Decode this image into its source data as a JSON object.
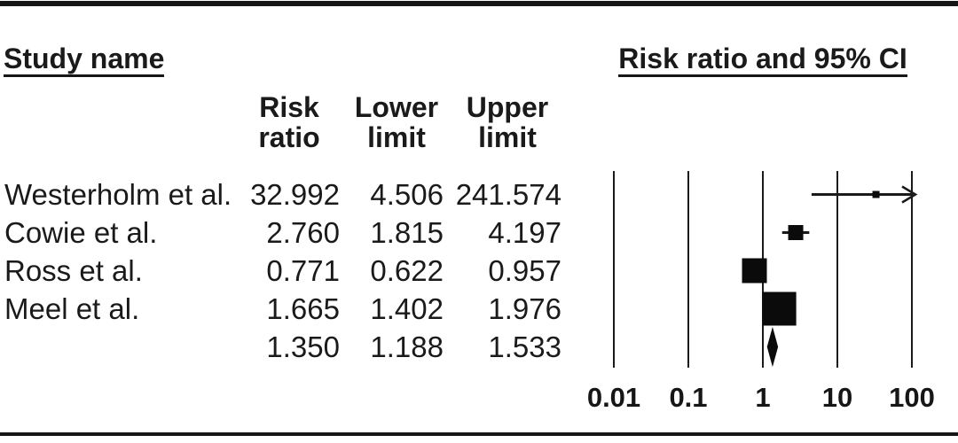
{
  "figure": {
    "headers": {
      "study_column": "Study name",
      "plot_column": "Risk ratio and 95% CI"
    },
    "table": {
      "columns": [
        {
          "line1": "Risk",
          "line2": "ratio"
        },
        {
          "line1": "Lower",
          "line2": "limit"
        },
        {
          "line1": "Upper",
          "line2": "limit"
        }
      ],
      "rows": [
        {
          "study": "Westerholm et al.",
          "risk_ratio": "32.992",
          "lower": "4.506",
          "upper": "241.574"
        },
        {
          "study": "Cowie et al.",
          "risk_ratio": "2.760",
          "lower": "1.815",
          "upper": "4.197"
        },
        {
          "study": "Ross et al.",
          "risk_ratio": "0.771",
          "lower": "0.622",
          "upper": "0.957"
        },
        {
          "study": "Meel et al.",
          "risk_ratio": "1.665",
          "lower": "1.402",
          "upper": "1.976"
        },
        {
          "study": "",
          "risk_ratio": "1.350",
          "lower": "1.188",
          "upper": "1.533"
        }
      ]
    }
  },
  "chart_data": {
    "type": "forest",
    "title": "Risk ratio and 95% CI",
    "x_scale": "log10",
    "x_range": [
      0.01,
      100
    ],
    "axis_ticks": [
      {
        "value": 0.01,
        "label": "0.01"
      },
      {
        "value": 0.1,
        "label": "0.1"
      },
      {
        "value": 1,
        "label": "1"
      },
      {
        "value": 10,
        "label": "10"
      },
      {
        "value": 100,
        "label": "100"
      }
    ],
    "studies": [
      {
        "name": "Westerholm et al.",
        "risk_ratio": 32.992,
        "ci_lower": 4.506,
        "ci_upper": 241.574,
        "ci_clipped_right": true,
        "marker_size_px": 8
      },
      {
        "name": "Cowie et al.",
        "risk_ratio": 2.76,
        "ci_lower": 1.815,
        "ci_upper": 4.197,
        "ci_clipped_right": false,
        "marker_size_px": 17
      },
      {
        "name": "Ross et al.",
        "risk_ratio": 0.771,
        "ci_lower": 0.622,
        "ci_upper": 0.957,
        "ci_clipped_right": false,
        "marker_size_px": 28
      },
      {
        "name": "Meel et al.",
        "risk_ratio": 1.665,
        "ci_lower": 1.402,
        "ci_upper": 1.976,
        "ci_clipped_right": false,
        "marker_size_px": 38
      }
    ],
    "summary": {
      "risk_ratio": 1.35,
      "ci_lower": 1.188,
      "ci_upper": 1.533,
      "marker": "diamond"
    },
    "colors": {
      "ink": "#1a1a1a",
      "marker_fill": "#0b0b0b",
      "background": "#ffffff"
    }
  }
}
